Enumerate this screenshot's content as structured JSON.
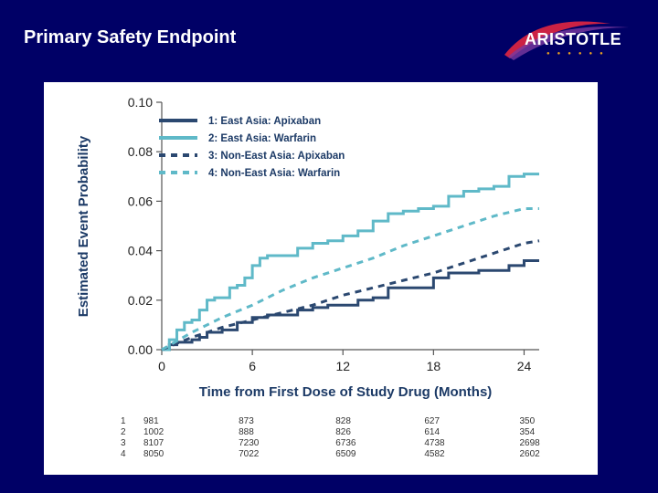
{
  "slide": {
    "title": "Primary Safety Endpoint",
    "logo_text": "ARISTOTLE"
  },
  "colors": {
    "background": "#000066",
    "east_asia": "#2b4870",
    "non_east_asia": "#5fb9c8"
  },
  "chart_data": {
    "type": "line",
    "title": "",
    "xlabel": "Time from First Dose of Study Drug (Months)",
    "ylabel": "Estimated Event Probability",
    "xlim": [
      0,
      25
    ],
    "ylim": [
      0,
      0.1
    ],
    "x_ticks": [
      0,
      6,
      12,
      18,
      24
    ],
    "y_ticks": [
      "0.00",
      "0.02",
      "0.04",
      "0.06",
      "0.08",
      "0.10"
    ],
    "grid": false,
    "legend_position": "top-left",
    "series": [
      {
        "name": "1: East Asia: Apixaban",
        "style": "solid",
        "color": "#2b4870",
        "x": [
          0,
          0.5,
          1,
          1.5,
          2,
          2.5,
          3,
          4,
          5,
          6,
          7,
          8,
          9,
          10,
          11,
          12,
          13,
          14,
          15,
          16,
          17,
          18,
          19,
          20,
          21,
          22,
          23,
          24,
          25
        ],
        "y": [
          0,
          0.002,
          0.003,
          0.003,
          0.004,
          0.005,
          0.007,
          0.008,
          0.011,
          0.013,
          0.014,
          0.014,
          0.016,
          0.017,
          0.018,
          0.018,
          0.02,
          0.021,
          0.025,
          0.025,
          0.025,
          0.029,
          0.031,
          0.031,
          0.032,
          0.032,
          0.034,
          0.036,
          0.036
        ]
      },
      {
        "name": "2: East Asia: Warfarin",
        "style": "solid",
        "color": "#5fb9c8",
        "x": [
          0,
          0.5,
          1,
          1.5,
          2,
          2.5,
          3,
          3.5,
          4,
          4.5,
          5,
          5.5,
          6,
          6.5,
          7,
          8,
          9,
          10,
          11,
          12,
          13,
          14,
          15,
          16,
          17,
          18,
          19,
          20,
          21,
          22,
          23,
          24,
          25
        ],
        "y": [
          0,
          0.004,
          0.008,
          0.011,
          0.012,
          0.016,
          0.02,
          0.021,
          0.021,
          0.025,
          0.026,
          0.029,
          0.034,
          0.037,
          0.038,
          0.038,
          0.041,
          0.043,
          0.044,
          0.046,
          0.048,
          0.052,
          0.055,
          0.056,
          0.057,
          0.058,
          0.062,
          0.064,
          0.065,
          0.066,
          0.07,
          0.071,
          0.071
        ]
      },
      {
        "name": "3: Non-East Asia: Apixaban",
        "style": "dashed",
        "color": "#2b4870",
        "x": [
          0,
          2,
          4,
          6,
          8,
          10,
          12,
          14,
          16,
          18,
          20,
          22,
          24,
          25
        ],
        "y": [
          0,
          0.005,
          0.009,
          0.012,
          0.015,
          0.018,
          0.022,
          0.025,
          0.028,
          0.031,
          0.035,
          0.039,
          0.043,
          0.044
        ]
      },
      {
        "name": "4: Non-East Asia: Warfarin",
        "style": "dashed",
        "color": "#5fb9c8",
        "x": [
          0,
          2,
          4,
          6,
          8,
          10,
          12,
          14,
          16,
          18,
          20,
          22,
          24,
          25
        ],
        "y": [
          0,
          0.007,
          0.013,
          0.018,
          0.024,
          0.029,
          0.033,
          0.037,
          0.042,
          0.046,
          0.05,
          0.054,
          0.057,
          0.057
        ]
      }
    ],
    "risk_table": {
      "rows": [
        {
          "label": "1",
          "counts": [
            "981",
            "873",
            "828",
            "627",
            "350"
          ]
        },
        {
          "label": "2",
          "counts": [
            "1002",
            "888",
            "826",
            "614",
            "354"
          ]
        },
        {
          "label": "3",
          "counts": [
            "8107",
            "7230",
            "6736",
            "4738",
            "2698"
          ]
        },
        {
          "label": "4",
          "counts": [
            "8050",
            "7022",
            "6509",
            "4582",
            "2602"
          ]
        }
      ]
    }
  }
}
